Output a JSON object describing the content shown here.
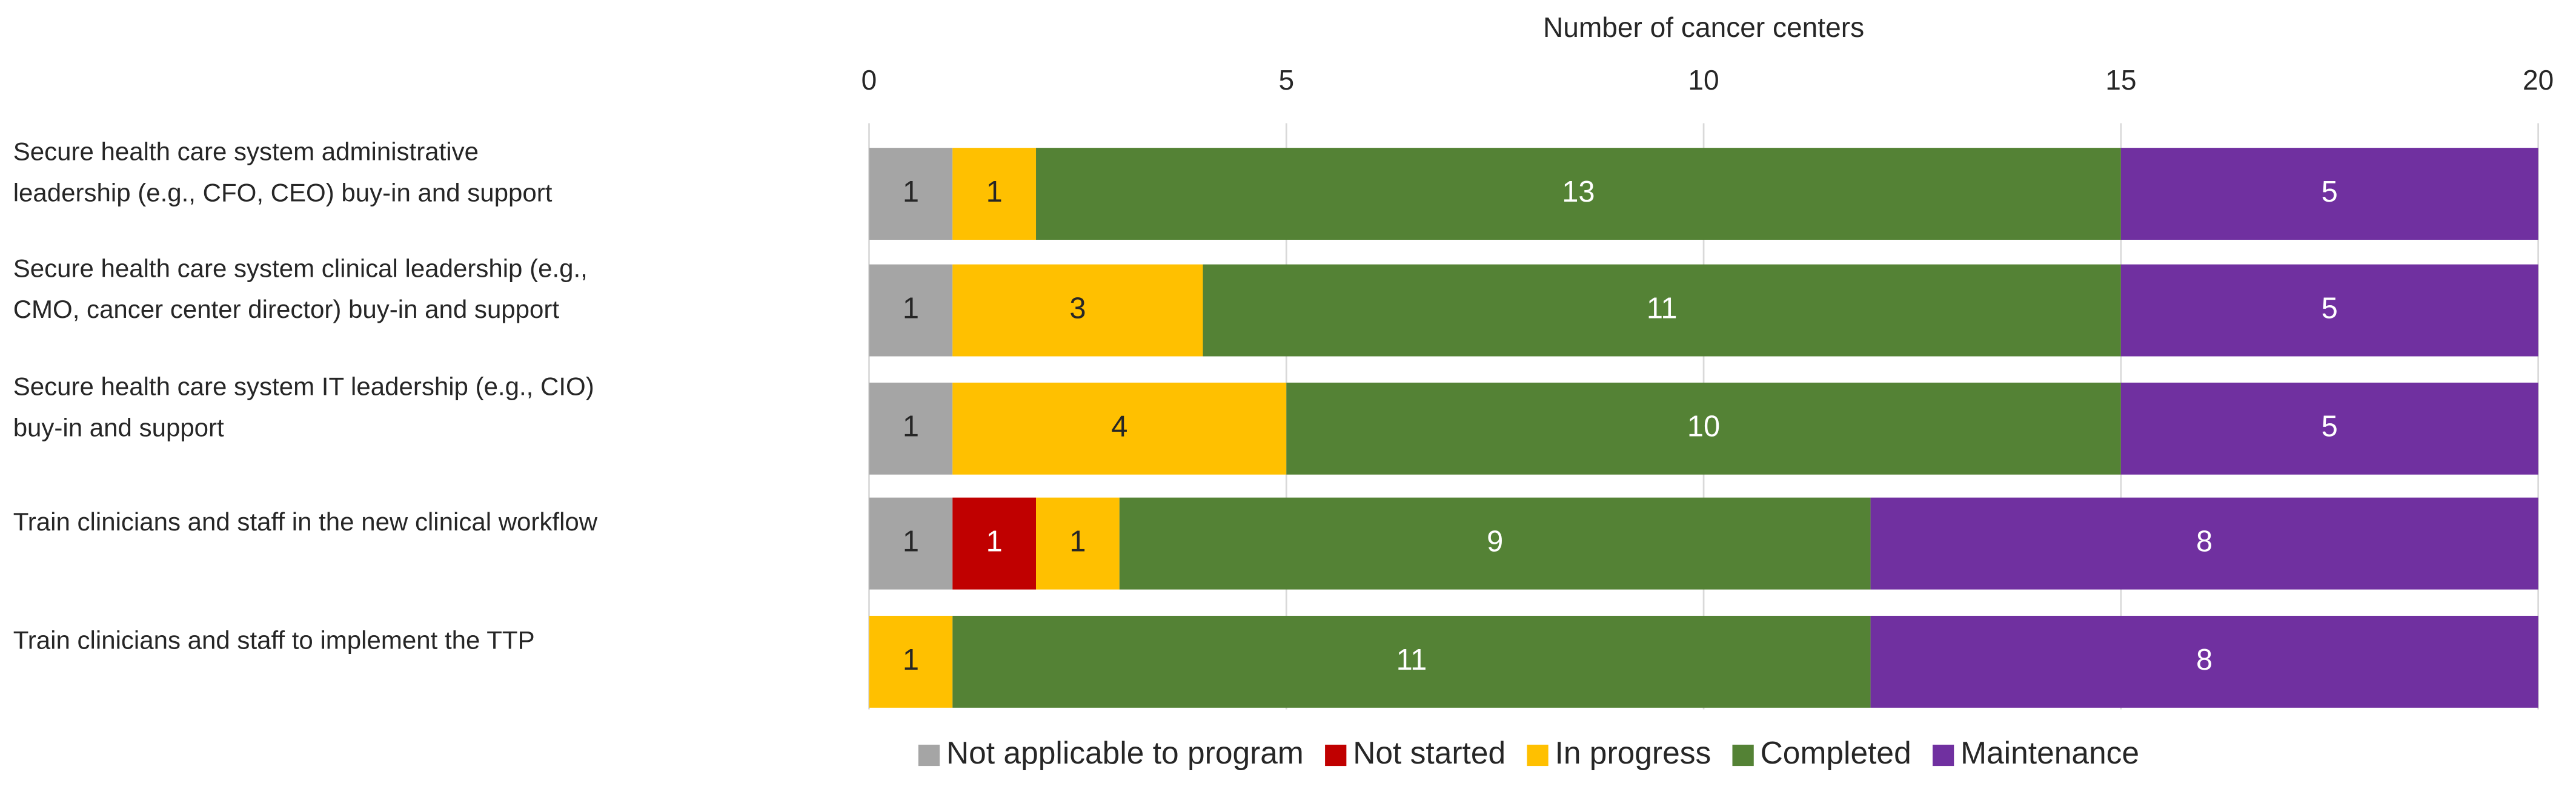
{
  "chart_data": {
    "type": "stacked-barh",
    "x_label": "Number of cancer centers",
    "xlim": [
      0,
      20
    ],
    "xticks": [
      0,
      5,
      10,
      15,
      20
    ],
    "grid": true,
    "legend": "bottom",
    "categories": [
      [
        "Secure health care system administrative",
        "leadership (e.g., CFO, CEO)  buy-in and support"
      ],
      [
        "Secure health care system clinical leadership (e.g.,",
        "CMO, cancer center director) buy-in and support"
      ],
      [
        "Secure health care system IT leadership (e.g., CIO)",
        "buy-in and support"
      ],
      [
        "Train clinicians and staff in the new clinical workflow"
      ],
      [
        "Train clinicians and staff to implement the TTP"
      ]
    ],
    "series": [
      {
        "name": "Not applicable to program",
        "color": "#a5a5a5",
        "label_color": "#262626",
        "values": [
          1,
          1,
          1,
          1,
          null
        ]
      },
      {
        "name": "Not started",
        "color": "#c00000",
        "label_color": "#ffffff",
        "values": [
          null,
          null,
          null,
          1,
          null
        ]
      },
      {
        "name": "In progress",
        "color": "#ffc000",
        "label_color": "#262626",
        "values": [
          1,
          3,
          4,
          1,
          1
        ]
      },
      {
        "name": "Completed",
        "color": "#548235",
        "label_color": "#ffffff",
        "values": [
          13,
          11,
          10,
          9,
          11
        ]
      },
      {
        "name": "Maintenance",
        "color": "#7030a0",
        "label_color": "#ffffff",
        "values": [
          5,
          5,
          5,
          8,
          8
        ]
      }
    ]
  }
}
